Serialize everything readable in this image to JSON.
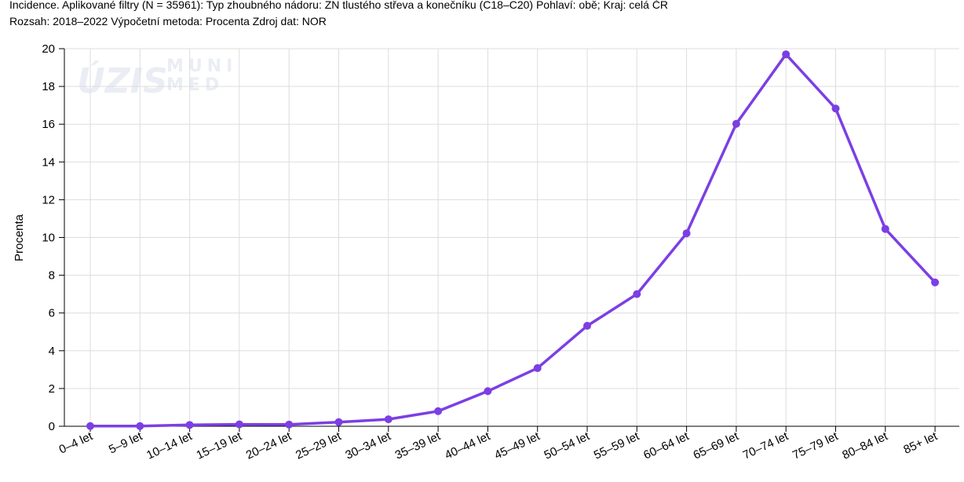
{
  "header": {
    "line1": "Incidence. Aplikované filtry (N = 35961): Typ zhoubného nádoru: ZN tlustého střeva a konečníku (C18–C20) Pohlaví: obě; Kraj: celá ČR",
    "line2": "Rozsah: 2018–2022 Výpočetní metoda: Procenta Zdroj dat: NOR"
  },
  "watermark": {
    "left": "ÚZIS",
    "right_top": "MUNI",
    "right_bottom": "MED"
  },
  "colors": {
    "line": "#7b3fe4",
    "grid": "#dddddd",
    "axis": "#000000"
  },
  "chart_data": {
    "type": "line",
    "title": "",
    "xlabel": "",
    "ylabel": "Procenta",
    "ylim": [
      0,
      20
    ],
    "yticks": [
      "0",
      "2",
      "4",
      "6",
      "8",
      "10",
      "12",
      "14",
      "16",
      "18",
      "20"
    ],
    "grid": true,
    "categories": [
      "0–4 let",
      "5–9 let",
      "10–14 let",
      "15–19 let",
      "20–24 let",
      "25–29 let",
      "30–34 let",
      "35–39 let",
      "40–44 let",
      "45–49 let",
      "50–54 let",
      "55–59 let",
      "60–64 let",
      "65–69 let",
      "70–74 let",
      "75–79 let",
      "80–84 let",
      "85+ let"
    ],
    "series": [
      {
        "values": [
          0.01,
          0.01,
          0.07,
          0.1,
          0.09,
          0.22,
          0.37,
          0.8,
          1.86,
          3.08,
          5.32,
          7.0,
          10.22,
          16.02,
          19.7,
          16.83,
          10.45,
          7.62
        ]
      }
    ]
  }
}
